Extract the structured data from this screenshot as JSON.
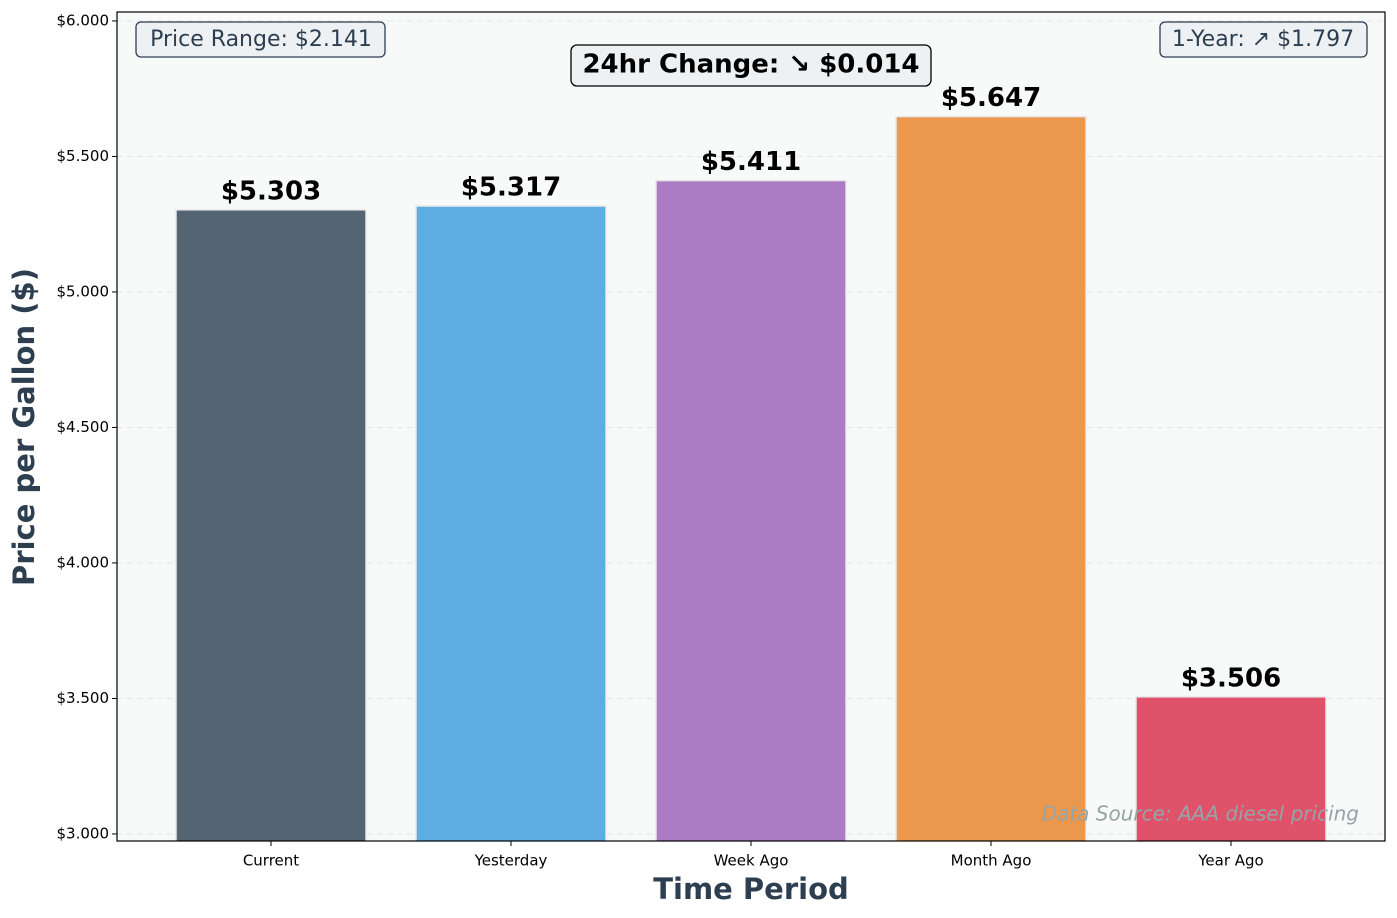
{
  "chart_data": {
    "type": "bar",
    "categories": [
      "Current",
      "Yesterday",
      "Week Ago",
      "Month Ago",
      "Year Ago"
    ],
    "values": [
      5.303,
      5.317,
      5.411,
      5.647,
      3.506
    ],
    "value_labels": [
      "$5.303",
      "$5.317",
      "$5.411",
      "$5.647",
      "$3.506"
    ],
    "colors": [
      "#546473",
      "#5dade2",
      "#ab7bc4",
      "#eb984e",
      "#e05269"
    ],
    "xlabel": "Time Period",
    "ylabel": "Price per Gallon ($)",
    "ylim": [
      2.974,
      6.033
    ],
    "yticks": [
      {
        "value": 3,
        "label": "$3.000"
      },
      {
        "value": 3.5,
        "label": "$3.500"
      },
      {
        "value": 4,
        "label": "$4.000"
      },
      {
        "value": 4.5,
        "label": "$4.500"
      },
      {
        "value": 5,
        "label": "$5.000"
      },
      {
        "value": 5.5,
        "label": "$5.500"
      },
      {
        "value": 6,
        "label": "$6.000"
      }
    ],
    "grid": true,
    "annotations": {
      "price_range": "Price Range: $2.141",
      "change_24hr": "24hr Change: ↘ $0.014",
      "one_year": "1-Year: ↗ $1.797",
      "source": "Data Source: AAA diesel pricing"
    }
  }
}
